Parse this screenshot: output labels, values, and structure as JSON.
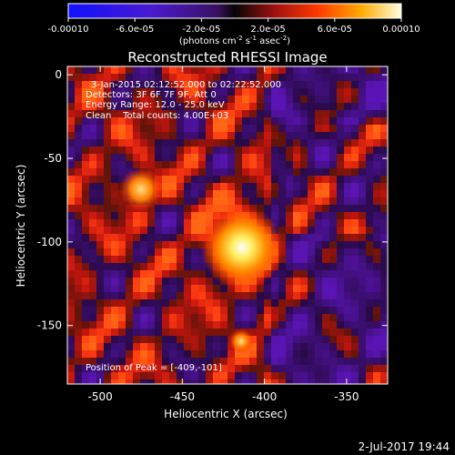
{
  "colorbar": {
    "tick_labels": [
      "-0.00010",
      "-6.0e-05",
      "-2.0e-05",
      "2.0e-05",
      "6.0e-05",
      "0.00010"
    ],
    "tick_values": [
      -0.0001,
      -6e-05,
      -2e-05,
      2e-05,
      6e-05,
      0.0001
    ],
    "range": [
      -0.0001,
      0.0001
    ],
    "unit_main": "(photons cm",
    "unit_exp1": "-2",
    "unit_mid": " s",
    "unit_exp2": "-1",
    "unit_end": " asec",
    "unit_exp3": "-2",
    "unit_close": ")"
  },
  "chart_data": {
    "type": "heatmap",
    "title": "Reconstructed RHESSI Image",
    "xlabel": "Heliocentric X (arcsec)",
    "ylabel": "Heliocentric Y (arcsec)",
    "xlim": [
      -520,
      -325
    ],
    "ylim": [
      -185,
      5
    ],
    "x_ticks": [
      -500,
      -450,
      -400,
      -350
    ],
    "y_ticks": [
      0,
      -50,
      -100,
      -150
    ],
    "x_tick_labels": [
      "-500",
      "-450",
      "-400",
      "-350"
    ],
    "y_tick_labels": [
      "0",
      "-50",
      "-100",
      "-150"
    ],
    "peak": [
      -409,
      -101
    ],
    "peak_label": "Position of Peak = [-409,-101]",
    "secondary_sources": [
      [
        -470,
        -68
      ],
      [
        -405,
        -170
      ]
    ],
    "annotations": [
      "3-Jan-2015 02:12:52.000 to 02:22:52.000",
      "Detectors: 3F 6F 7F 9F, Att 0",
      "Energy Range: 12.0 - 25.0 keV",
      "Clean    Total counts: 4.00E+03"
    ]
  },
  "footer": {
    "timestamp": "2-Jul-2017 19:44"
  }
}
